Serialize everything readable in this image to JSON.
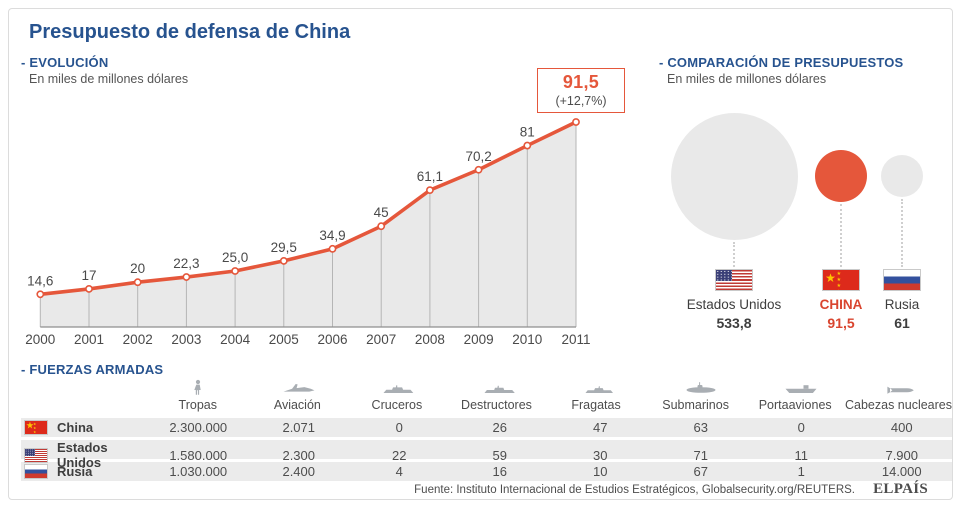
{
  "title": "Presupuesto de defensa de China",
  "colors": {
    "accent_orange": "#e5573b",
    "accent_orange_text": "#d9452f",
    "heading_blue": "#27538f",
    "area_fill": "#e9e9e9",
    "bubble_gray": "#e9e9e9",
    "text_gray": "#4d4d4d"
  },
  "evolution": {
    "heading": "- EVOLUCIÓN",
    "subtitle": "En miles de millones dólares"
  },
  "comparison": {
    "heading": "- COMPARACIÓN DE PRESUPUESTOS",
    "subtitle": "En miles de millones dólares"
  },
  "forces": {
    "heading": "- FUERZAS ARMADAS"
  },
  "footer": {
    "source": "Fuente: Instituto Internacional de Estudios Estratégicos, Globalsecurity.org/REUTERS.",
    "brand": "ELPAÍS"
  },
  "chart_data": [
    {
      "type": "area",
      "title": "EVOLUCIÓN",
      "subtitle": "En miles de millones dólares",
      "x": [
        2000,
        2001,
        2002,
        2003,
        2004,
        2005,
        2006,
        2007,
        2008,
        2009,
        2010,
        2011
      ],
      "values": [
        14.6,
        17,
        20,
        22.3,
        25.0,
        29.5,
        34.9,
        45,
        61.1,
        70.2,
        81,
        91.5
      ],
      "value_labels": [
        "14,6",
        "17",
        "20",
        "22,3",
        "25,0",
        "29,5",
        "34,9",
        "45",
        "61,1",
        "70,2",
        "81",
        "91,5"
      ],
      "annotation": {
        "year": 2011,
        "value": "91,5",
        "change": "(+12,7%)"
      },
      "ylim": [
        0,
        100
      ],
      "line_color": "#e5573b",
      "fill_color": "#e9e9e9",
      "grid": false,
      "legend": "none"
    },
    {
      "type": "bubble",
      "title": "COMPARACIÓN DE PRESUPUESTOS",
      "entries": [
        {
          "label": "Estados Unidos",
          "value": 533.8,
          "display": "533,8",
          "flag": "us",
          "color": "#e9e9e9",
          "highlight": false
        },
        {
          "label": "CHINA",
          "value": 91.5,
          "display": "91,5",
          "flag": "cn",
          "color": "#e5573b",
          "highlight": true
        },
        {
          "label": "Rusia",
          "value": 61,
          "display": "61",
          "flag": "ru",
          "color": "#e9e9e9",
          "highlight": false
        }
      ]
    },
    {
      "type": "table",
      "title": "FUERZAS ARMADAS",
      "columns": [
        {
          "label": "Tropas",
          "icon": "soldier-icon"
        },
        {
          "label": "Aviación",
          "icon": "jet-icon"
        },
        {
          "label": "Cruceros",
          "icon": "cruiser-icon"
        },
        {
          "label": "Destructores",
          "icon": "destroyer-icon"
        },
        {
          "label": "Fragatas",
          "icon": "frigate-icon"
        },
        {
          "label": "Submarinos",
          "icon": "submarine-icon"
        },
        {
          "label": "Portaaviones",
          "icon": "carrier-icon"
        },
        {
          "label": "Cabezas nucleares",
          "icon": "warhead-icon"
        }
      ],
      "rows": [
        {
          "country": "China",
          "flag": "cn",
          "values": [
            "2.300.000",
            "2.071",
            "0",
            "26",
            "47",
            "63",
            "0",
            "400"
          ]
        },
        {
          "country": "Estados Unidos",
          "flag": "us",
          "values": [
            "1.580.000",
            "2.300",
            "22",
            "59",
            "30",
            "71",
            "11",
            "7.900"
          ]
        },
        {
          "country": "Rusia",
          "flag": "ru",
          "values": [
            "1.030.000",
            "2.400",
            "4",
            "16",
            "10",
            "67",
            "1",
            "14.000"
          ]
        }
      ]
    }
  ]
}
